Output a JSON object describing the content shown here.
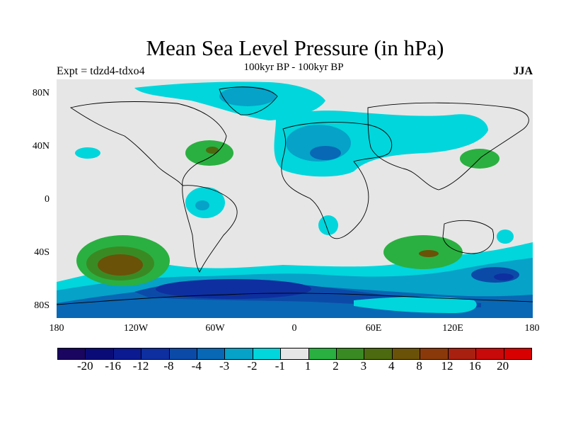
{
  "title": "Mean Sea Level Pressure (in hPa)",
  "experiment": "Expt = tdzd4-tdxo4",
  "period": "100kyr BP - 100kyr BP",
  "season": "JJA",
  "latitude_labels": [
    "80N",
    "40N",
    "0",
    "40S",
    "80S"
  ],
  "longitude_labels": [
    "180",
    "120W",
    "60W",
    "0",
    "60E",
    "120E",
    "180"
  ],
  "colorbar": {
    "labels": [
      "-20",
      "-16",
      "-12",
      "-8",
      "-4",
      "-3",
      "-2",
      "-1",
      "1",
      "2",
      "3",
      "4",
      "8",
      "12",
      "16",
      "20"
    ],
    "colors": [
      "#1a0660",
      "#0b0b78",
      "#0b1a90",
      "#0e2fa0",
      "#0c4aa8",
      "#0868b5",
      "#06a2c8",
      "#00d6dc",
      "#e6e6e6",
      "#2ab040",
      "#3a8a24",
      "#4c6a10",
      "#6a5208",
      "#8a3a0a",
      "#a82010",
      "#c80a0a",
      "#d80000"
    ]
  },
  "chart_data": {
    "type": "heatmap",
    "variable": "Mean Sea Level Pressure difference",
    "units": "hPa",
    "x_range": [
      -180,
      180
    ],
    "y_range": [
      -90,
      90
    ],
    "contour_levels": [
      -20,
      -16,
      -12,
      -8,
      -4,
      -3,
      -2,
      -1,
      1,
      2,
      3,
      4,
      8,
      12,
      16,
      20
    ]
  }
}
